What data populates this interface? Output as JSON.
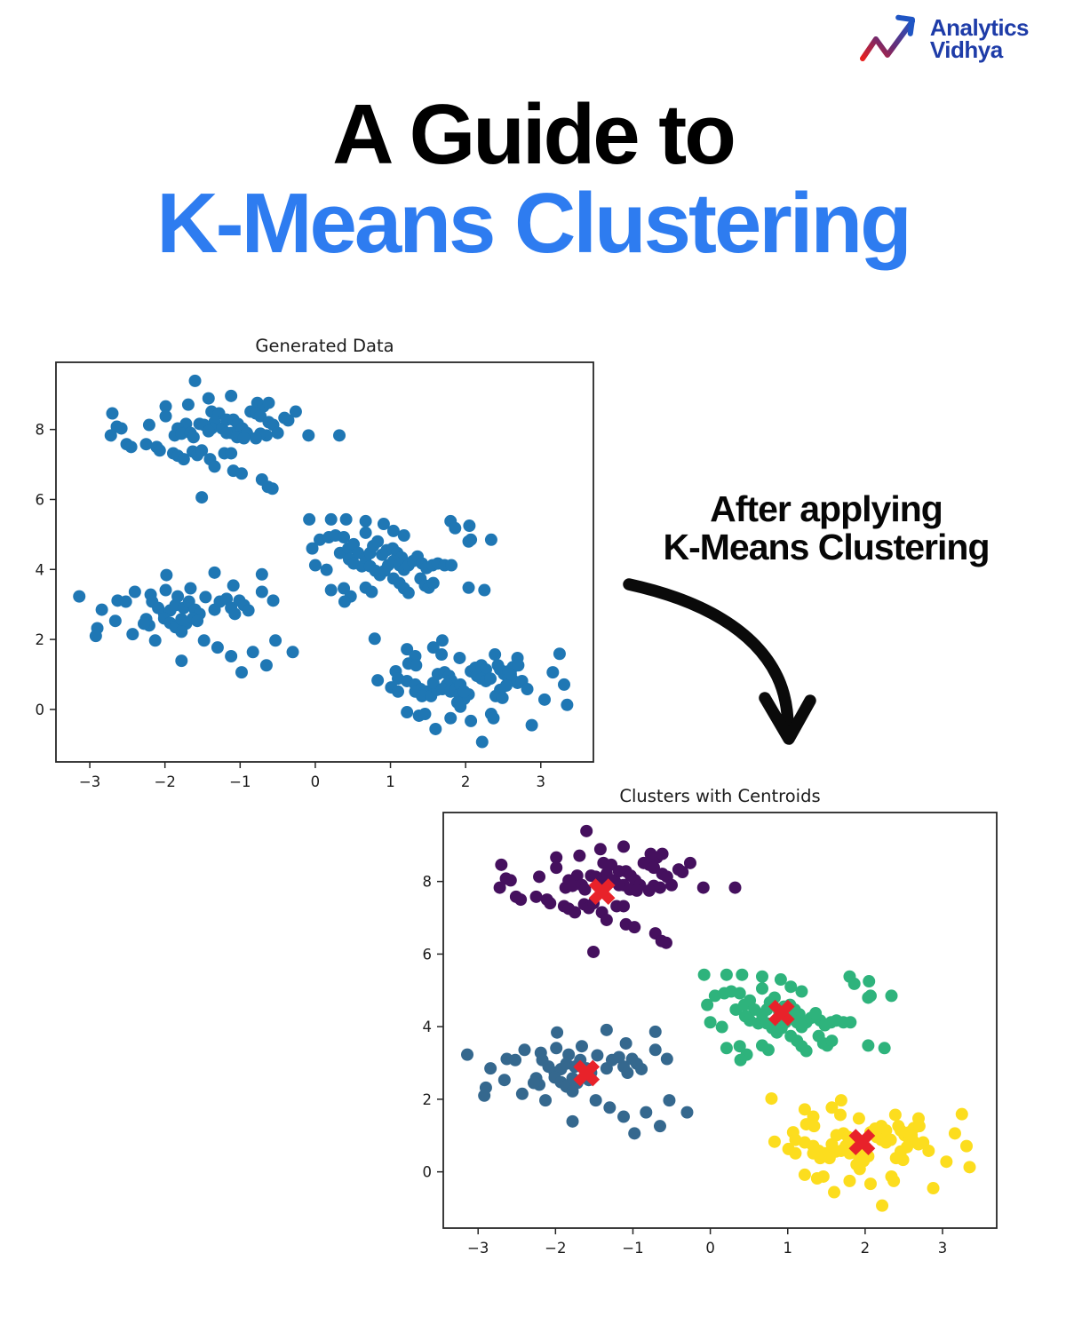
{
  "logo": {
    "line1": "Analytics",
    "line2": "Vidhya",
    "text_color": "#1e3ca8",
    "icon_gradient_start": "#e8201e",
    "icon_gradient_mid": "#6b2a72",
    "icon_gradient_end": "#1f55c4"
  },
  "title": {
    "line1": "A Guide to",
    "line2": "K-Means Clustering",
    "line1_color": "#000000",
    "line2_color": "#2e7cf0"
  },
  "annotation": {
    "line1": "After applying",
    "line2": "K-Means Clustering",
    "color": "#070707"
  },
  "chart_data": {
    "shared_clusters": [
      {
        "name": "cluster-top",
        "color": "#45105e",
        "centroid": [
          -1.4,
          7.72
        ],
        "points": [
          [
            -1.6,
            9.39
          ],
          [
            -1.42,
            8.89
          ],
          [
            -1.12,
            8.96
          ],
          [
            -1.69,
            8.71
          ],
          [
            -1.99,
            8.66
          ],
          [
            -1.99,
            8.38
          ],
          [
            -2.7,
            8.46
          ],
          [
            -2.64,
            8.08
          ],
          [
            -2.58,
            8.03
          ],
          [
            -2.72,
            7.83
          ],
          [
            -2.21,
            8.13
          ],
          [
            -1.38,
            8.51
          ],
          [
            -1.28,
            8.46
          ],
          [
            -1.34,
            8.21
          ],
          [
            -1.38,
            8.03
          ],
          [
            -1.54,
            8.16
          ],
          [
            -1.72,
            8.16
          ],
          [
            -1.83,
            8.03
          ],
          [
            -1.87,
            7.83
          ],
          [
            -1.78,
            7.88
          ],
          [
            -1.66,
            7.9
          ],
          [
            -1.62,
            7.78
          ],
          [
            -1.48,
            8.13
          ],
          [
            -1.42,
            7.95
          ],
          [
            -1.24,
            8.03
          ],
          [
            -1.18,
            8.28
          ],
          [
            -1.09,
            8.28
          ],
          [
            -1.03,
            8.16
          ],
          [
            -0.97,
            8.03
          ],
          [
            -0.91,
            7.9
          ],
          [
            -1.12,
            7.9
          ],
          [
            -1.18,
            7.9
          ],
          [
            -1.04,
            7.78
          ],
          [
            -0.95,
            7.75
          ],
          [
            -0.86,
            8.51
          ],
          [
            -0.77,
            8.76
          ],
          [
            -0.69,
            8.66
          ],
          [
            -0.62,
            8.76
          ],
          [
            -0.79,
            8.46
          ],
          [
            -0.73,
            8.38
          ],
          [
            -0.62,
            8.21
          ],
          [
            -0.56,
            8.13
          ],
          [
            -0.5,
            7.9
          ],
          [
            -0.65,
            7.83
          ],
          [
            -0.73,
            7.88
          ],
          [
            -0.79,
            7.75
          ],
          [
            -0.41,
            8.33
          ],
          [
            -0.36,
            8.26
          ],
          [
            -0.26,
            8.51
          ],
          [
            -0.09,
            7.83
          ],
          [
            0.32,
            7.83
          ],
          [
            -2.51,
            7.58
          ],
          [
            -2.45,
            7.5
          ],
          [
            -2.25,
            7.58
          ],
          [
            -2.11,
            7.5
          ],
          [
            -2.07,
            7.4
          ],
          [
            -1.89,
            7.32
          ],
          [
            -1.83,
            7.25
          ],
          [
            -1.75,
            7.15
          ],
          [
            -1.63,
            7.37
          ],
          [
            -1.57,
            7.27
          ],
          [
            -1.51,
            7.4
          ],
          [
            -1.4,
            7.15
          ],
          [
            -1.34,
            6.94
          ],
          [
            -1.21,
            7.32
          ],
          [
            -1.12,
            7.32
          ],
          [
            -1.09,
            6.82
          ],
          [
            -0.98,
            6.74
          ],
          [
            -0.71,
            6.57
          ],
          [
            -0.63,
            6.36
          ],
          [
            -0.57,
            6.31
          ],
          [
            -1.51,
            6.06
          ]
        ]
      },
      {
        "name": "cluster-right",
        "color": "#2eb37c",
        "centroid": [
          0.92,
          4.38
        ],
        "points": [
          [
            -0.08,
            5.43
          ],
          [
            0.21,
            5.43
          ],
          [
            0.41,
            5.43
          ],
          [
            0.67,
            5.38
          ],
          [
            0.91,
            5.3
          ],
          [
            0.67,
            5.05
          ],
          [
            1.04,
            5.1
          ],
          [
            1.18,
            4.97
          ],
          [
            1.8,
            5.38
          ],
          [
            1.86,
            5.18
          ],
          [
            2.05,
            5.25
          ],
          [
            2.07,
            4.85
          ],
          [
            2.04,
            4.8
          ],
          [
            2.34,
            4.85
          ],
          [
            -0.04,
            4.6
          ],
          [
            0.06,
            4.85
          ],
          [
            0.18,
            4.92
          ],
          [
            0.27,
            4.97
          ],
          [
            0.38,
            4.92
          ],
          [
            0.0,
            4.12
          ],
          [
            0.15,
            3.99
          ],
          [
            0.33,
            4.47
          ],
          [
            0.44,
            4.6
          ],
          [
            0.51,
            4.72
          ],
          [
            0.57,
            4.47
          ],
          [
            0.45,
            4.29
          ],
          [
            0.51,
            4.17
          ],
          [
            0.62,
            4.09
          ],
          [
            0.67,
            4.34
          ],
          [
            0.73,
            4.47
          ],
          [
            0.77,
            4.67
          ],
          [
            0.83,
            4.8
          ],
          [
            0.73,
            4.09
          ],
          [
            0.8,
            3.96
          ],
          [
            0.86,
            3.84
          ],
          [
            0.92,
            3.96
          ],
          [
            0.97,
            4.12
          ],
          [
            0.89,
            4.42
          ],
          [
            0.95,
            4.55
          ],
          [
            1.03,
            4.6
          ],
          [
            1.09,
            4.47
          ],
          [
            1.15,
            4.34
          ],
          [
            1.04,
            4.24
          ],
          [
            1.12,
            4.12
          ],
          [
            1.18,
            3.99
          ],
          [
            1.24,
            4.12
          ],
          [
            1.3,
            4.24
          ],
          [
            1.36,
            4.37
          ],
          [
            1.42,
            4.17
          ],
          [
            1.48,
            4.04
          ],
          [
            1.56,
            4.12
          ],
          [
            1.63,
            4.17
          ],
          [
            1.72,
            4.12
          ],
          [
            1.81,
            4.12
          ],
          [
            1.04,
            3.74
          ],
          [
            1.12,
            3.61
          ],
          [
            1.18,
            3.46
          ],
          [
            1.24,
            3.33
          ],
          [
            1.4,
            3.74
          ],
          [
            1.46,
            3.54
          ],
          [
            1.51,
            3.48
          ],
          [
            1.57,
            3.61
          ],
          [
            0.21,
            3.41
          ],
          [
            0.38,
            3.46
          ],
          [
            0.47,
            3.23
          ],
          [
            0.39,
            3.08
          ],
          [
            0.67,
            3.48
          ],
          [
            0.75,
            3.36
          ],
          [
            2.04,
            3.48
          ],
          [
            2.25,
            3.41
          ]
        ]
      },
      {
        "name": "cluster-left",
        "color": "#35688e",
        "centroid": [
          -1.6,
          2.72
        ],
        "points": [
          [
            -1.98,
            3.84
          ],
          [
            -1.34,
            3.91
          ],
          [
            -0.71,
            3.86
          ],
          [
            -3.14,
            3.23
          ],
          [
            -2.4,
            3.36
          ],
          [
            -2.19,
            3.28
          ],
          [
            -1.99,
            3.41
          ],
          [
            -1.83,
            3.23
          ],
          [
            -1.66,
            3.46
          ],
          [
            -1.46,
            3.21
          ],
          [
            -1.09,
            3.54
          ],
          [
            -0.71,
            3.36
          ],
          [
            -0.56,
            3.11
          ],
          [
            -2.84,
            2.85
          ],
          [
            -2.63,
            3.11
          ],
          [
            -2.52,
            3.08
          ],
          [
            -2.17,
            3.08
          ],
          [
            -2.09,
            2.9
          ],
          [
            -2.01,
            2.73
          ],
          [
            -1.93,
            2.83
          ],
          [
            -1.86,
            2.98
          ],
          [
            -1.75,
            2.9
          ],
          [
            -1.68,
            3.08
          ],
          [
            -1.6,
            2.85
          ],
          [
            -1.54,
            2.73
          ],
          [
            -2.66,
            2.53
          ],
          [
            -2.25,
            2.58
          ],
          [
            -2.21,
            2.4
          ],
          [
            -2.01,
            2.6
          ],
          [
            -1.93,
            2.47
          ],
          [
            -1.86,
            2.35
          ],
          [
            -1.78,
            2.58
          ],
          [
            -1.72,
            2.45
          ],
          [
            -1.63,
            2.6
          ],
          [
            -1.57,
            2.53
          ],
          [
            -1.34,
            2.85
          ],
          [
            -1.27,
            3.08
          ],
          [
            -1.18,
            3.16
          ],
          [
            -1.12,
            2.9
          ],
          [
            -1.07,
            2.73
          ],
          [
            -1.01,
            3.11
          ],
          [
            -0.95,
            2.98
          ],
          [
            -0.89,
            2.83
          ],
          [
            -2.9,
            2.32
          ],
          [
            -2.92,
            2.1
          ],
          [
            -2.28,
            2.45
          ],
          [
            -2.43,
            2.15
          ],
          [
            -2.13,
            1.97
          ],
          [
            -1.78,
            2.22
          ],
          [
            -1.48,
            1.97
          ],
          [
            -1.3,
            1.77
          ],
          [
            -1.12,
            1.52
          ],
          [
            -0.83,
            1.64
          ],
          [
            -0.65,
            1.26
          ],
          [
            -0.53,
            1.97
          ],
          [
            -0.3,
            1.64
          ],
          [
            -1.78,
            1.39
          ],
          [
            -0.98,
            1.06
          ]
        ]
      },
      {
        "name": "cluster-bottom",
        "color": "#fcdd1e",
        "centroid": [
          1.96,
          0.82
        ],
        "points": [
          [
            0.79,
            2.02
          ],
          [
            1.22,
            1.72
          ],
          [
            1.33,
            1.52
          ],
          [
            1.57,
            1.77
          ],
          [
            1.69,
            1.97
          ],
          [
            1.68,
            1.57
          ],
          [
            1.92,
            1.47
          ],
          [
            1.24,
            1.31
          ],
          [
            1.34,
            1.26
          ],
          [
            1.07,
            1.09
          ],
          [
            1.1,
            0.88
          ],
          [
            0.83,
            0.83
          ],
          [
            1.01,
            0.63
          ],
          [
            1.1,
            0.51
          ],
          [
            1.22,
            0.81
          ],
          [
            1.33,
            0.71
          ],
          [
            1.4,
            0.58
          ],
          [
            1.48,
            0.51
          ],
          [
            1.33,
            0.51
          ],
          [
            1.42,
            0.38
          ],
          [
            1.54,
            0.38
          ],
          [
            1.62,
            0.56
          ],
          [
            1.57,
            0.76
          ],
          [
            1.63,
            1.01
          ],
          [
            1.72,
            1.06
          ],
          [
            1.78,
            0.96
          ],
          [
            1.81,
            0.83
          ],
          [
            1.75,
            0.71
          ],
          [
            1.69,
            0.58
          ],
          [
            1.8,
            0.51
          ],
          [
            1.87,
            0.58
          ],
          [
            1.93,
            0.71
          ],
          [
            1.92,
            0.43
          ],
          [
            1.98,
            0.3
          ],
          [
            2.04,
            0.43
          ],
          [
            1.98,
            0.51
          ],
          [
            1.89,
            0.2
          ],
          [
            1.93,
            0.08
          ],
          [
            2.07,
            1.09
          ],
          [
            2.13,
            1.19
          ],
          [
            2.21,
            1.26
          ],
          [
            2.27,
            1.14
          ],
          [
            2.15,
            0.96
          ],
          [
            2.21,
            0.88
          ],
          [
            2.27,
            0.81
          ],
          [
            2.33,
            0.88
          ],
          [
            2.39,
            1.57
          ],
          [
            2.43,
            1.26
          ],
          [
            2.46,
            1.14
          ],
          [
            2.51,
            1.01
          ],
          [
            2.57,
            1.09
          ],
          [
            2.63,
            1.21
          ],
          [
            2.69,
            1.47
          ],
          [
            2.7,
            1.26
          ],
          [
            2.57,
            0.88
          ],
          [
            2.63,
            0.83
          ],
          [
            2.69,
            0.76
          ],
          [
            2.54,
            0.68
          ],
          [
            2.46,
            0.56
          ],
          [
            2.4,
            0.38
          ],
          [
            2.49,
            0.33
          ],
          [
            2.6,
            1.01
          ],
          [
            2.75,
            0.81
          ],
          [
            2.82,
            0.58
          ],
          [
            2.34,
            -0.13
          ],
          [
            2.37,
            -0.25
          ],
          [
            2.07,
            -0.33
          ],
          [
            1.6,
            -0.56
          ],
          [
            1.8,
            -0.25
          ],
          [
            1.22,
            -0.08
          ],
          [
            1.38,
            -0.18
          ],
          [
            1.46,
            -0.13
          ],
          [
            2.22,
            -0.93
          ],
          [
            2.88,
            -0.45
          ],
          [
            3.25,
            1.59
          ],
          [
            3.16,
            1.06
          ],
          [
            3.31,
            0.71
          ],
          [
            3.35,
            0.13
          ],
          [
            3.05,
            0.28
          ]
        ]
      }
    ],
    "charts": [
      {
        "type": "scatter",
        "title": "Generated Data",
        "xticks": [
          -3,
          -2,
          -1,
          0,
          1,
          2,
          3
        ],
        "yticks": [
          0,
          2,
          4,
          6,
          8
        ],
        "xlim": [
          -3.45,
          3.7
        ],
        "ylim": [
          -1.5,
          9.92
        ],
        "grid": false,
        "colored": false,
        "show_centroids": false,
        "point_color": "#1f77b4"
      },
      {
        "type": "scatter",
        "title": "Clusters with Centroids",
        "xticks": [
          -3,
          -2,
          -1,
          0,
          1,
          2,
          3
        ],
        "yticks": [
          0,
          2,
          4,
          6,
          8
        ],
        "xlim": [
          -3.45,
          3.7
        ],
        "ylim": [
          -1.55,
          9.9
        ],
        "grid": false,
        "colored": true,
        "show_centroids": true,
        "centroid_color": "#e8222a",
        "centroid_marker": "X"
      }
    ]
  }
}
